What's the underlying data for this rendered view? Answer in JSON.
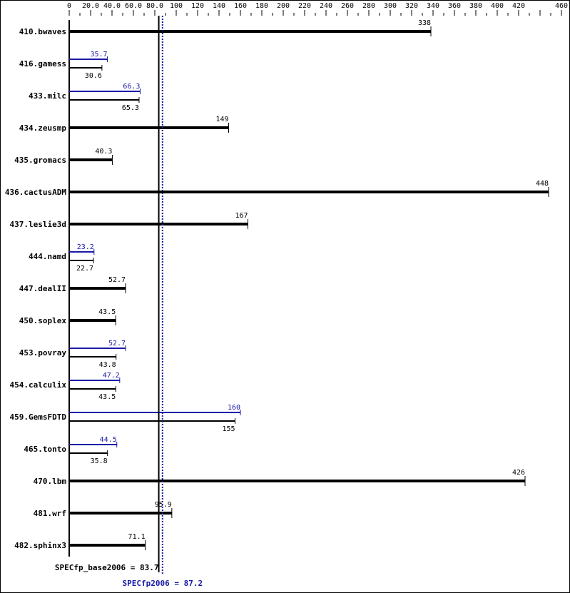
{
  "chart_data": {
    "type": "bar",
    "orientation": "horizontal",
    "xlim": [
      0,
      460
    ],
    "ticks": [
      "0",
      "20.0",
      "40.0",
      "60.0",
      "80.0",
      "100",
      "120",
      "140",
      "160",
      "180",
      "200",
      "220",
      "240",
      "260",
      "280",
      "300",
      "320",
      "340",
      "360",
      "380",
      "400",
      "420",
      "460"
    ],
    "tick_values": [
      0,
      20,
      40,
      60,
      80,
      100,
      120,
      140,
      160,
      180,
      200,
      220,
      240,
      260,
      280,
      300,
      320,
      340,
      360,
      380,
      400,
      420,
      460
    ],
    "categories": [
      "410.bwaves",
      "416.gamess",
      "433.milc",
      "434.zeusmp",
      "435.gromacs",
      "436.cactusADM",
      "437.leslie3d",
      "444.namd",
      "447.dealII",
      "450.soplex",
      "453.povray",
      "454.calculix",
      "459.GemsFDTD",
      "465.tonto",
      "470.lbm",
      "481.wrf",
      "482.sphinx3"
    ],
    "series": [
      {
        "name": "SPECfp_base2006",
        "values": [
          338,
          30.6,
          65.3,
          149,
          40.3,
          448,
          167,
          22.7,
          52.7,
          43.5,
          43.8,
          43.5,
          155,
          35.8,
          426,
          95.9,
          71.1
        ]
      },
      {
        "name": "SPECfp2006",
        "values": [
          338,
          35.7,
          66.3,
          149,
          40.3,
          448,
          167,
          23.2,
          52.7,
          43.5,
          52.7,
          47.2,
          160,
          44.5,
          426,
          95.9,
          71.1
        ]
      }
    ],
    "base_label": "SPECfp_base2006 = 83.7",
    "base_value": 83.7,
    "peak_label": "SPECfp2006 = 87.2",
    "peak_value": 87.2,
    "colors": {
      "base": "#000000",
      "peak": "#1a1aa6"
    }
  }
}
